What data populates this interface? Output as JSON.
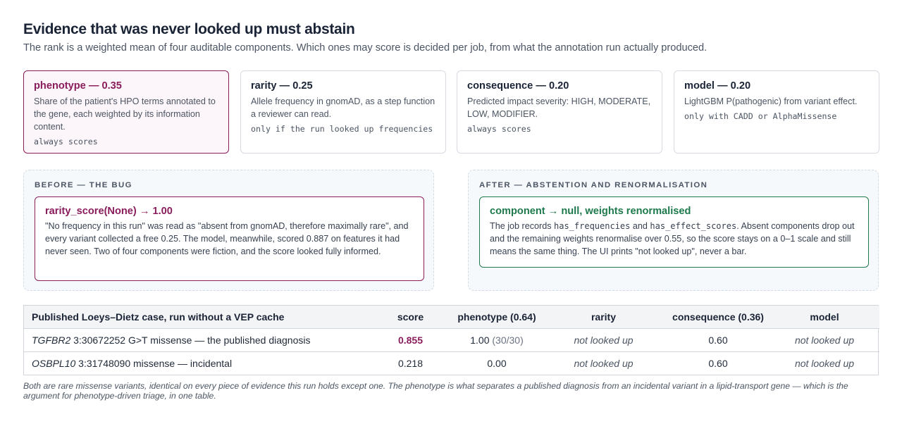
{
  "title": "Evidence that was never looked up must abstain",
  "subtitle": "The rank is a weighted mean of four auditable components. Which ones may score is decided per job, from what the annotation run actually produced.",
  "components": [
    {
      "title": "phenotype — 0.35",
      "description": "Share of the patient's HPO terms annotated to the gene, each weighted by its information content.",
      "tag": "always scores"
    },
    {
      "title": "rarity — 0.25",
      "description": "Allele frequency in gnomAD, as a step function a reviewer can read.",
      "tag": "only if the run looked up frequencies"
    },
    {
      "title": "consequence — 0.20",
      "description": "Predicted impact severity: HIGH, MODERATE, LOW, MODIFIER.",
      "tag": "always scores"
    },
    {
      "title": "model — 0.20",
      "description": "LightGBM P(pathogenic) from variant effect.",
      "tag": "only with CADD or AlphaMissense"
    }
  ],
  "before": {
    "label": "BEFORE — THE BUG",
    "title": "rarity_score(None) → 1.00",
    "text": "\"No frequency in this run\" was read as \"absent from gnomAD, therefore maximally rare\", and every variant collected a free 0.25. The model, meanwhile, scored 0.887 on features it had never seen. Two of four components were fiction, and the score looked fully informed."
  },
  "after": {
    "label": "AFTER — ABSTENTION AND RENORMALISATION",
    "title": "component → null, weights renormalised",
    "text_1": "The job records ",
    "code_1": "has_frequencies",
    "text_2": " and ",
    "code_2": "has_effect_scores",
    "text_3": ". Absent components drop out and the remaining weights renormalise over 0.55, so the score stays on a 0–1 scale and still means the same thing. The UI prints \"not looked up\", never a bar."
  },
  "table": {
    "headers": [
      "Published Loeys–Dietz case, run without a VEP cache",
      "score",
      "phenotype (0.64)",
      "rarity",
      "consequence (0.36)",
      "model"
    ],
    "rows": [
      {
        "gene": "TGFBR2",
        "variant": " 3:30672252 G>T missense — the published diagnosis",
        "score": "0.855",
        "phenotype": "1.00",
        "phenotype_detail": " (30/30)",
        "rarity": "not looked up",
        "consequence": "0.60",
        "model": "not looked up"
      },
      {
        "gene": "OSBPL10",
        "variant": " 3:31748090 missense — incidental",
        "score": "0.218",
        "phenotype": "0.00",
        "phenotype_detail": "",
        "rarity": "not looked up",
        "consequence": "0.60",
        "model": "not looked up"
      }
    ]
  },
  "footnote": "Both are rare missense variants, identical on every piece of evidence this run holds except one. The phenotype is what separates a published diagnosis from an incidental variant in a lipid-transport gene — which is the argument for phenotype-driven triage, in one table.",
  "colors": {
    "accent": "#8a1d5c",
    "success": "#1f7a4d",
    "heading": "#1a2436"
  }
}
